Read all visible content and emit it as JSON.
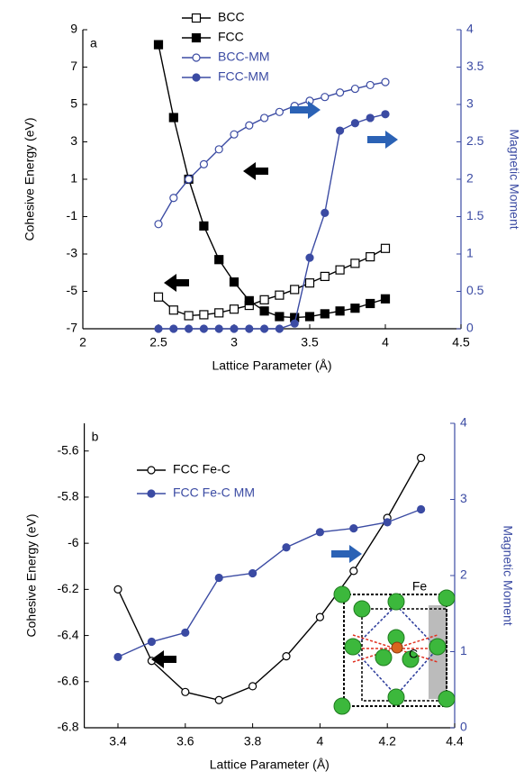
{
  "chart_data": [
    {
      "type": "line",
      "panel_label": "a",
      "xlabel": "Lattice Parameter (Å)",
      "ylabel": "Cohesive Energy (eV)",
      "y2label": "Magnetic Moment",
      "x": [
        2.5,
        2.6,
        2.7,
        2.8,
        2.9,
        3.0,
        3.1,
        3.2,
        3.3,
        3.4,
        3.5,
        3.6,
        3.7,
        3.8,
        3.9,
        4.0
      ],
      "xlim": [
        2,
        4.5
      ],
      "xticks": [
        2,
        2.5,
        3,
        3.5,
        4,
        4.5
      ],
      "ylim": [
        -7,
        9
      ],
      "yticks": [
        -7,
        -5,
        -3,
        -1,
        1,
        3,
        5,
        7,
        9
      ],
      "y2lim": [
        0,
        4
      ],
      "y2ticks": [
        0,
        0.5,
        1,
        1.5,
        2,
        2.5,
        3,
        3.5,
        4
      ],
      "series": [
        {
          "name": "BCC",
          "color": "#000000",
          "marker": "square",
          "filled": false,
          "values": [
            -5.3,
            -6.0,
            -6.3,
            -6.25,
            -6.15,
            -5.95,
            -5.75,
            -5.45,
            -5.2,
            -4.9,
            -4.55,
            -4.2,
            -3.85,
            -3.5,
            -3.15,
            -2.7
          ]
        },
        {
          "name": "FCC",
          "color": "#000000",
          "marker": "square",
          "filled": true,
          "values": [
            8.2,
            4.3,
            1.0,
            -1.5,
            -3.3,
            -4.5,
            -5.5,
            -6.05,
            -6.35,
            -6.4,
            -6.35,
            -6.2,
            -6.05,
            -5.9,
            -5.65,
            -5.4
          ]
        },
        {
          "name": "BCC-MM",
          "color": "#3b4ba3",
          "marker": "circle",
          "filled": false,
          "axis": "y2",
          "values": [
            1.4,
            1.75,
            2.0,
            2.2,
            2.4,
            2.6,
            2.72,
            2.82,
            2.9,
            2.98,
            3.05,
            3.1,
            3.16,
            3.21,
            3.26,
            3.3
          ]
        },
        {
          "name": "FCC-MM",
          "color": "#3b4ba3",
          "marker": "circle",
          "filled": true,
          "axis": "y2",
          "values": [
            0,
            0,
            0,
            0,
            0,
            0,
            0,
            0,
            0,
            0.07,
            0.95,
            1.55,
            2.65,
            2.75,
            2.82,
            2.87
          ]
        }
      ]
    },
    {
      "type": "line",
      "panel_label": "b",
      "xlabel": "Lattice Parameter (Å)",
      "ylabel": "Cohesive Energy (eV)",
      "y2label": "Magnetic Moment",
      "annotations": [
        "Fe",
        "C"
      ],
      "x": [
        3.4,
        3.5,
        3.6,
        3.7,
        3.8,
        3.9,
        4.0,
        4.1,
        4.2,
        4.3
      ],
      "xlim": [
        3.3,
        4.4
      ],
      "xticks": [
        3.4,
        3.6,
        3.8,
        4.0,
        4.2,
        4.4
      ],
      "ylim": [
        -6.8,
        -5.48
      ],
      "yticks": [
        -6.8,
        -6.6,
        -6.4,
        -6.2,
        -6.0,
        -5.8,
        -5.6
      ],
      "y2lim": [
        0,
        4
      ],
      "y2ticks": [
        0,
        1,
        2,
        3,
        4
      ],
      "series": [
        {
          "name": "FCC Fe-C",
          "color": "#000000",
          "marker": "circle",
          "filled": false,
          "values": [
            -6.2,
            -6.51,
            -6.645,
            -6.68,
            -6.62,
            -6.49,
            -6.32,
            -6.12,
            -5.89,
            -5.63
          ]
        },
        {
          "name": "FCC Fe-C MM",
          "color": "#3b4ba3",
          "marker": "circle",
          "filled": true,
          "axis": "y2",
          "values": [
            0.93,
            1.13,
            1.25,
            1.97,
            2.03,
            2.37,
            2.57,
            2.62,
            2.7,
            2.87
          ]
        }
      ]
    }
  ]
}
